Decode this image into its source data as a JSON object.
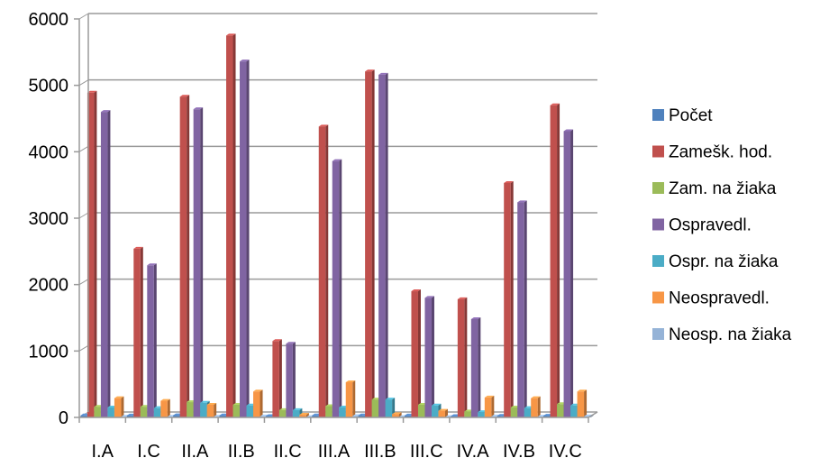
{
  "chart_data": {
    "type": "bar",
    "title": "",
    "xlabel": "",
    "ylabel": "",
    "ylim": [
      0,
      6000
    ],
    "yticks": [
      0,
      1000,
      2000,
      3000,
      4000,
      5000,
      6000
    ],
    "grid": true,
    "legend_position": "right",
    "categories": [
      "I.A",
      "I.C",
      "II.A",
      "II.B",
      "II.C",
      "III.A",
      "III.B",
      "III.C",
      "IV.A",
      "IV.B",
      "IV.C"
    ],
    "series": [
      {
        "name": "Počet",
        "color": "#4F81BD",
        "values": [
          30,
          28,
          32,
          30,
          20,
          30,
          30,
          28,
          20,
          24,
          26
        ]
      },
      {
        "name": "Zamešk. hod.",
        "color": "#C0504D",
        "values": [
          4890,
          2540,
          4830,
          5750,
          1150,
          4380,
          5210,
          1900,
          1780,
          3530,
          4700
        ]
      },
      {
        "name": "Zam. na žiaka",
        "color": "#9BBB59",
        "values": [
          160,
          160,
          230,
          190,
          110,
          170,
          270,
          190,
          90,
          150,
          200
        ]
      },
      {
        "name": "Ospravedl.",
        "color": "#8064A2",
        "values": [
          4600,
          2290,
          4640,
          5360,
          1110,
          3860,
          5160,
          1800,
          1480,
          3240,
          4310
        ]
      },
      {
        "name": "Ospr. na žiaka",
        "color": "#4BACC6",
        "values": [
          150,
          140,
          220,
          180,
          110,
          150,
          270,
          180,
          80,
          140,
          180
        ]
      },
      {
        "name": "Neospravedl.",
        "color": "#F79646",
        "values": [
          290,
          250,
          190,
          390,
          40,
          530,
          50,
          100,
          300,
          290,
          390
        ]
      },
      {
        "name": "Neosp. na žiaka",
        "color": "#95B3D7",
        "values": [
          10,
          10,
          10,
          15,
          5,
          20,
          5,
          5,
          15,
          12,
          15
        ]
      }
    ]
  }
}
